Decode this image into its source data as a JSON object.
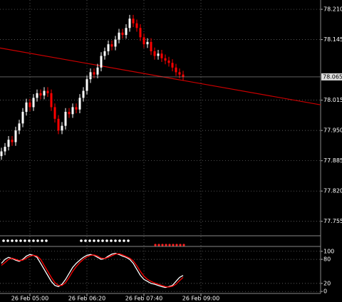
{
  "chart_data": [
    {
      "type": "candlestick",
      "categories": [
        null,
        null,
        null,
        null,
        null,
        null,
        null,
        null,
        "26 Feb 05:00",
        null,
        null,
        null,
        null,
        null,
        null,
        null,
        null,
        null,
        null,
        null,
        null,
        null,
        null,
        null,
        "26 Feb 06:20",
        null,
        null,
        null,
        null,
        null,
        null,
        null,
        null,
        null,
        null,
        null,
        null,
        null,
        null,
        null,
        "26 Feb 07:40",
        null,
        null,
        null,
        null,
        null,
        null,
        null,
        null,
        null,
        null,
        null,
        null,
        null,
        null,
        null,
        "26 Feb 09:00",
        null
      ],
      "open": [
        77.895,
        77.905,
        77.915,
        77.93,
        77.925,
        77.95,
        77.965,
        77.99,
        78.01,
        78.0,
        78.02,
        78.03,
        78.025,
        78.035,
        78.03,
        78.0,
        77.975,
        77.95,
        77.96,
        77.99,
        77.985,
        78.0,
        77.995,
        78.02,
        78.035,
        78.06,
        78.075,
        78.07,
        78.085,
        78.11,
        78.12,
        78.135,
        78.13,
        78.145,
        78.16,
        78.155,
        78.17,
        78.19,
        78.18,
        78.17,
        78.15,
        78.135,
        78.14,
        78.12,
        78.11,
        78.115,
        78.105,
        78.1,
        78.095,
        78.085,
        78.075,
        78.07,
        null,
        null,
        null,
        null,
        null,
        null
      ],
      "high": [
        77.913,
        77.923,
        77.938,
        77.938,
        77.958,
        77.973,
        77.998,
        78.018,
        78.018,
        78.028,
        78.038,
        78.038,
        78.043,
        78.043,
        78.038,
        78.008,
        77.983,
        77.968,
        77.998,
        77.998,
        78.008,
        78.008,
        78.028,
        78.043,
        78.068,
        78.083,
        78.083,
        78.093,
        78.118,
        78.128,
        78.143,
        78.143,
        78.153,
        78.168,
        78.168,
        78.178,
        78.198,
        78.198,
        78.188,
        78.178,
        78.158,
        78.148,
        78.148,
        78.128,
        78.123,
        78.123,
        78.113,
        78.108,
        78.103,
        78.093,
        78.083,
        78.078,
        null,
        null,
        null,
        null,
        null,
        null
      ],
      "low": [
        77.887,
        77.897,
        77.907,
        77.917,
        77.917,
        77.942,
        77.957,
        77.982,
        77.992,
        77.992,
        78.012,
        78.017,
        78.017,
        78.022,
        77.992,
        77.967,
        77.942,
        77.942,
        77.952,
        77.977,
        77.977,
        77.987,
        77.987,
        78.012,
        78.027,
        78.052,
        78.062,
        78.062,
        78.077,
        78.102,
        78.112,
        78.122,
        78.122,
        78.137,
        78.147,
        78.147,
        78.162,
        78.172,
        78.162,
        78.142,
        78.127,
        78.127,
        78.112,
        78.102,
        78.102,
        78.097,
        78.092,
        78.087,
        78.077,
        78.067,
        78.062,
        78.057,
        null,
        null,
        null,
        null,
        null,
        null
      ],
      "close": [
        77.905,
        77.915,
        77.93,
        77.925,
        77.95,
        77.965,
        77.99,
        78.01,
        78.0,
        78.02,
        78.03,
        78.025,
        78.035,
        78.03,
        78.0,
        77.975,
        77.95,
        77.96,
        77.99,
        77.985,
        78.0,
        77.995,
        78.02,
        78.035,
        78.06,
        78.075,
        78.07,
        78.085,
        78.11,
        78.12,
        78.135,
        78.13,
        78.145,
        78.16,
        78.155,
        78.17,
        78.19,
        78.18,
        78.17,
        78.15,
        78.135,
        78.14,
        78.12,
        78.11,
        78.115,
        78.105,
        78.1,
        78.095,
        78.085,
        78.075,
        78.07,
        78.065,
        null,
        null,
        null,
        null,
        null,
        null
      ],
      "up_color": "#ffffff",
      "down_color": "#ff0000",
      "ylim": [
        77.724,
        78.23
      ],
      "yticks": [
        {
          "value": 78.21,
          "label": "78.210"
        },
        {
          "value": 78.145,
          "label": "78.145"
        },
        {
          "value": 78.015,
          "label": "78.015"
        },
        {
          "value": 77.95,
          "label": "77.950"
        },
        {
          "value": 77.885,
          "label": "77.885"
        },
        {
          "value": 77.82,
          "label": "77.820"
        },
        {
          "value": 77.755,
          "label": "77.755"
        }
      ],
      "current_price": 78.065,
      "trend_line": {
        "values": [
          78.127,
          78.005
        ],
        "color": "#cc0000"
      },
      "grid": true
    },
    {
      "type": "line",
      "series": [
        {
          "color": "#ffffff",
          "values": [
            70,
            80,
            85,
            82,
            78,
            75,
            80,
            88,
            92,
            90,
            85,
            70,
            55,
            40,
            25,
            15,
            12,
            18,
            30,
            45,
            60,
            70,
            78,
            85,
            90,
            92,
            90,
            85,
            80,
            82,
            88,
            93,
            95,
            92,
            88,
            85,
            80,
            70,
            55,
            40,
            30,
            25,
            20,
            18,
            15,
            12,
            10,
            12,
            15,
            25,
            35,
            40,
            null,
            null,
            null,
            null,
            null,
            null
          ]
        },
        {
          "color": "#ff0000",
          "values": [
            65,
            72,
            80,
            83,
            80,
            77,
            78,
            83,
            88,
            90,
            88,
            80,
            65,
            50,
            35,
            22,
            15,
            15,
            22,
            35,
            50,
            62,
            72,
            80,
            86,
            90,
            91,
            88,
            83,
            82,
            85,
            89,
            93,
            94,
            91,
            87,
            83,
            76,
            64,
            50,
            38,
            30,
            25,
            21,
            18,
            15,
            12,
            11,
            13,
            18,
            27,
            35,
            null,
            null,
            null,
            null,
            null,
            null
          ]
        }
      ],
      "ylim": [
        -5,
        105
      ],
      "yticks": [
        100,
        80,
        20,
        0
      ],
      "grid": true
    }
  ]
}
